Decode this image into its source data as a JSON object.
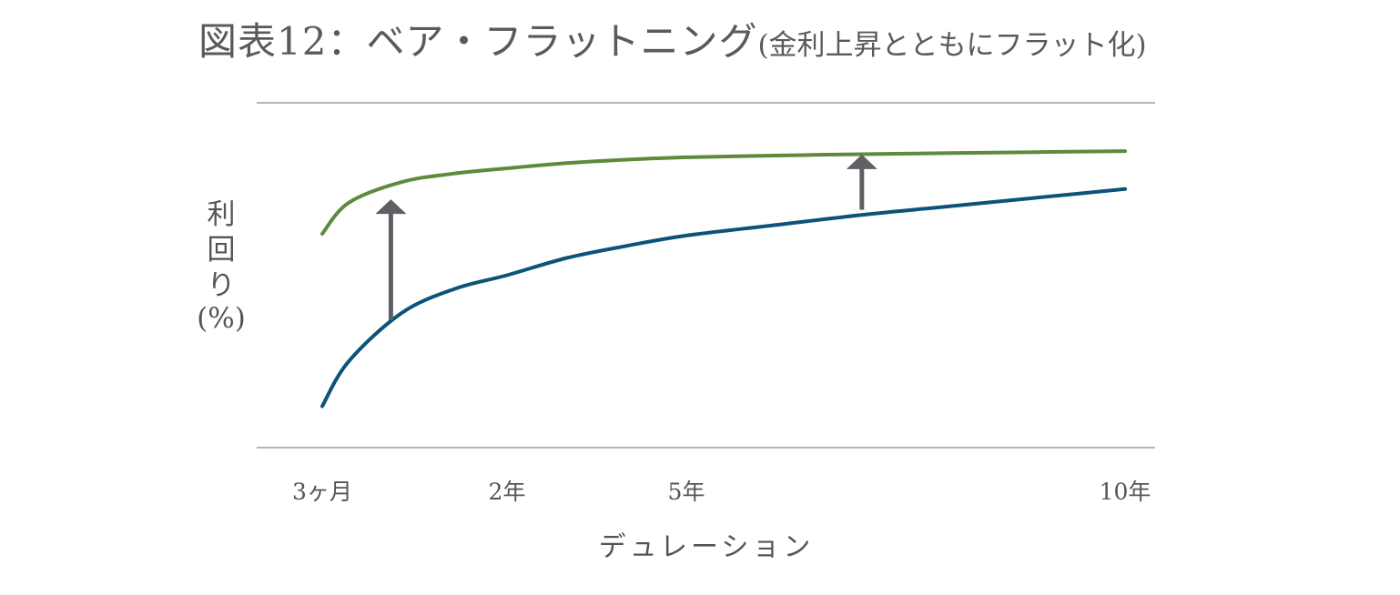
{
  "chart_data": {
    "type": "line",
    "title": "図表12：ベア・フラットニング",
    "subtitle": "(金利上昇とともにフラット化)",
    "ylabel_lines": [
      "利",
      "回",
      "り",
      "(%)"
    ],
    "xlabel": "デュレーション",
    "x_ticks": [
      "3ヶ月",
      "2年",
      "5年",
      "10年"
    ],
    "x_tick_years": [
      0.25,
      2,
      5,
      10
    ],
    "grid": false,
    "series": [
      {
        "color": "#5e8a3a",
        "x": [
          0.25,
          0.5,
          1,
          1.5,
          2,
          3,
          4,
          5,
          6,
          7,
          8,
          9,
          10
        ],
        "y": [
          6.2,
          7.1,
          7.7,
          7.95,
          8.1,
          8.25,
          8.35,
          8.42,
          8.47,
          8.51,
          8.54,
          8.57,
          8.6
        ]
      },
      {
        "color": "#0b5378",
        "x": [
          0.25,
          0.5,
          1,
          1.5,
          2,
          3,
          4,
          5,
          6,
          7,
          8,
          9,
          10
        ],
        "y": [
          1.2,
          2.5,
          3.9,
          4.6,
          5.0,
          5.5,
          5.85,
          6.15,
          6.45,
          6.75,
          7.0,
          7.25,
          7.5
        ]
      }
    ],
    "arrows": [
      {
        "x": 0.9,
        "from": 3.7,
        "to": 7.2,
        "color": "#5f5f66"
      },
      {
        "x": 7.0,
        "from": 6.9,
        "to": 8.5,
        "color": "#5f5f66"
      }
    ],
    "ylim": [
      0,
      10
    ]
  }
}
